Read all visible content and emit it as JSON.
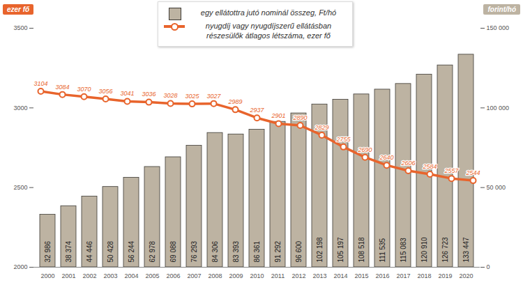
{
  "chart_data": {
    "type": "bar",
    "categories": [
      "2000",
      "2001",
      "2002",
      "2003",
      "2004",
      "2005",
      "2006",
      "2007",
      "2008",
      "2009",
      "2010",
      "2011",
      "2012",
      "2013",
      "2014",
      "2015",
      "2016",
      "2017",
      "2018",
      "2019",
      "2020"
    ],
    "series": [
      {
        "name": "egy ellátottra jutó nominál összeg, Ft/hó",
        "type": "bar",
        "axis": "y2",
        "color": "#bdb3a2",
        "values": [
          32986,
          38374,
          44446,
          50428,
          56244,
          62978,
          69088,
          76293,
          84306,
          83393,
          86361,
          91292,
          96600,
          102198,
          105197,
          108518,
          111535,
          115083,
          120910,
          126723,
          133447
        ],
        "value_labels": [
          "32 986",
          "38 374",
          "44 446",
          "50 428",
          "56 244",
          "62 978",
          "69 088",
          "76 293",
          "84 306",
          "83 393",
          "86 361",
          "91 292",
          "96 600",
          "102 198",
          "105 197",
          "108 518",
          "111 535",
          "115 083",
          "120 910",
          "126 723",
          "133 447"
        ]
      },
      {
        "name": "nyugdíj vagy nyugdíjszerű ellátásban részesülők átlagos létszáma, ezer fő",
        "type": "line",
        "color": "#e8642c",
        "marker": "circle",
        "values": [
          3104,
          3084,
          3070,
          3056,
          3041,
          3036,
          3028,
          3025,
          3027,
          2989,
          2937,
          2901,
          2890,
          2829,
          2755,
          2690,
          2640,
          2606,
          2584,
          2557,
          2544
        ]
      }
    ],
    "ylabel": "ezer fő",
    "y2label": "forint/hó",
    "ylim": [
      2000,
      3500
    ],
    "yticks": [
      2000,
      2500,
      3000,
      3500
    ],
    "y2lim": [
      0,
      150000
    ],
    "y2ticks": [
      0,
      {
        "value": 50000,
        "label": "50 000"
      },
      {
        "value": 100000,
        "label": "100 000"
      },
      {
        "value": 150000,
        "label": "150 000"
      }
    ],
    "data_labels": true,
    "grid": false,
    "legend": "top"
  }
}
